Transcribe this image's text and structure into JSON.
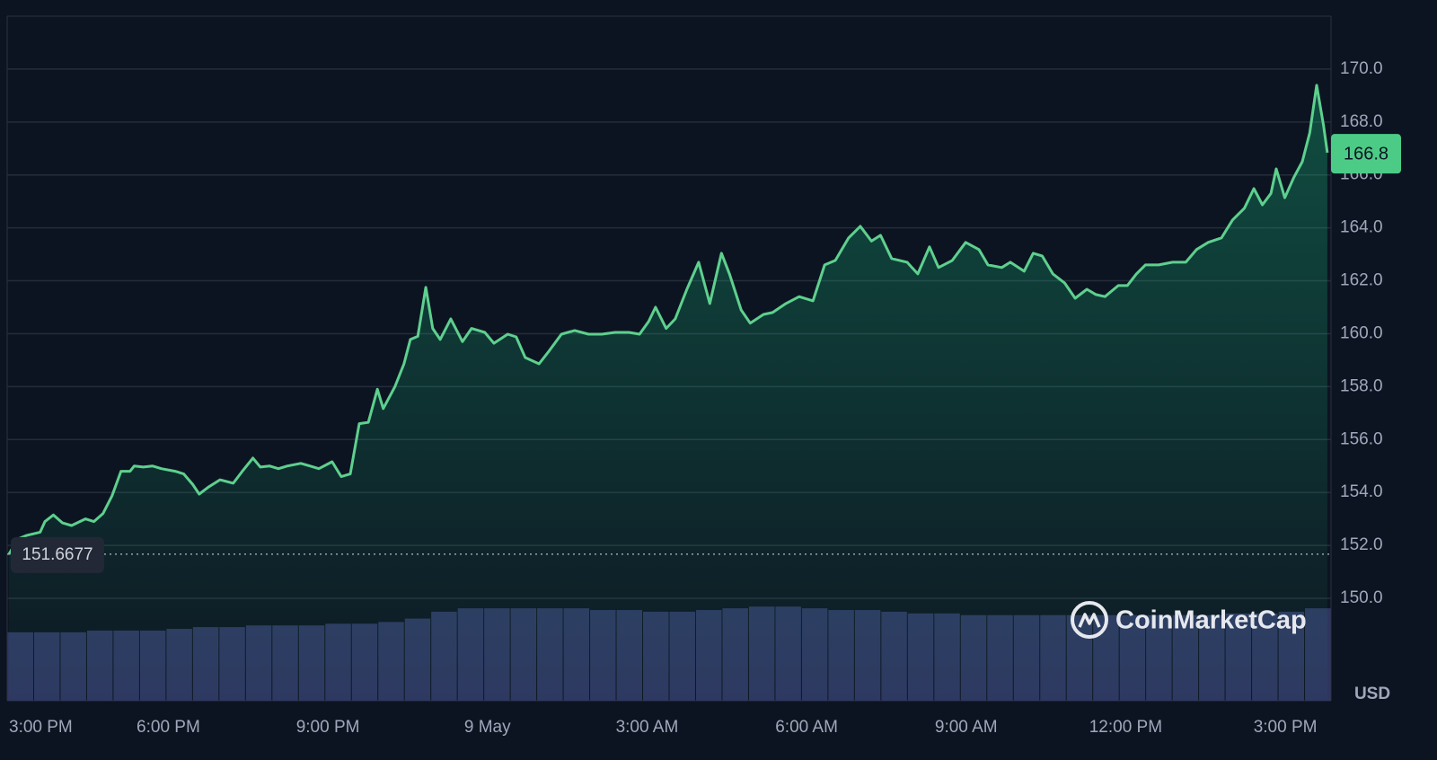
{
  "chart_data": {
    "type": "line",
    "color": "#5ed08e",
    "x": [
      15.0,
      15.17,
      15.34,
      15.59,
      15.68,
      15.84,
      16.01,
      16.18,
      16.44,
      16.6,
      16.77,
      16.94,
      17.11,
      17.28,
      17.36,
      17.53,
      17.7,
      17.87,
      18.13,
      18.29,
      18.46,
      18.58,
      18.75,
      18.97,
      19.22,
      19.39,
      19.59,
      19.73,
      19.9,
      20.07,
      20.24,
      20.49,
      20.66,
      20.83,
      21.08,
      21.25,
      21.42,
      21.59,
      21.76,
      21.93,
      22.04,
      22.26,
      22.43,
      22.55,
      22.69,
      22.84,
      22.97,
      23.11,
      23.31,
      23.53,
      23.7,
      23.95,
      24.12,
      24.38,
      24.54,
      24.71,
      24.97,
      25.14,
      25.39,
      25.64,
      25.9,
      26.15,
      26.4,
      26.66,
      26.86,
      27.03,
      27.16,
      27.36,
      27.53,
      27.75,
      27.97,
      28.18,
      28.4,
      28.55,
      28.77,
      28.94,
      29.19,
      29.36,
      29.61,
      29.86,
      30.12,
      30.34,
      30.54,
      30.79,
      31.01,
      31.22,
      31.39,
      31.6,
      31.89,
      32.09,
      32.31,
      32.48,
      32.74,
      32.99,
      33.24,
      33.41,
      33.67,
      33.83,
      34.09,
      34.26,
      34.43,
      34.63,
      34.85,
      35.05,
      35.27,
      35.44,
      35.61,
      35.86,
      36.03,
      36.2,
      36.37,
      36.62,
      36.88,
      37.13,
      37.33,
      37.55,
      37.8,
      38.01,
      38.23,
      38.41,
      38.57,
      38.73,
      38.83,
      38.99,
      39.16,
      39.32,
      39.46,
      39.59,
      39.72,
      39.79
    ],
    "values": [
      151.66,
      152.24,
      152.38,
      152.5,
      152.9,
      153.15,
      152.85,
      152.75,
      153.0,
      152.9,
      153.2,
      153.87,
      154.8,
      154.8,
      155.0,
      154.96,
      155.0,
      154.9,
      154.8,
      154.7,
      154.3,
      153.94,
      154.2,
      154.48,
      154.35,
      154.8,
      155.3,
      154.96,
      155.0,
      154.9,
      155.0,
      155.1,
      155.0,
      154.9,
      155.16,
      154.6,
      154.7,
      156.6,
      156.65,
      157.9,
      157.17,
      158.0,
      158.86,
      159.78,
      159.9,
      161.75,
      160.2,
      159.78,
      160.56,
      159.7,
      160.2,
      160.05,
      159.64,
      159.98,
      159.88,
      159.1,
      158.86,
      159.3,
      159.98,
      160.12,
      159.98,
      159.98,
      160.05,
      160.05,
      159.98,
      160.46,
      161.0,
      160.2,
      160.56,
      161.68,
      162.7,
      161.14,
      163.04,
      162.26,
      160.9,
      160.4,
      160.73,
      160.8,
      161.14,
      161.4,
      161.24,
      162.6,
      162.77,
      163.62,
      164.06,
      163.5,
      163.72,
      162.84,
      162.7,
      162.26,
      163.28,
      162.5,
      162.77,
      163.45,
      163.18,
      162.6,
      162.5,
      162.7,
      162.36,
      163.04,
      162.94,
      162.26,
      161.92,
      161.34,
      161.68,
      161.48,
      161.4,
      161.82,
      161.82,
      162.26,
      162.6,
      162.6,
      162.7,
      162.7,
      163.18,
      163.45,
      163.62,
      164.3,
      164.74,
      165.48,
      164.87,
      165.3,
      166.23,
      165.14,
      165.9,
      166.5,
      167.59,
      169.39,
      167.86,
      166.84
    ],
    "xlim": [
      14.97,
      39.86
    ],
    "xticks": [
      {
        "value": 15,
        "label": "3:00 PM"
      },
      {
        "value": 18,
        "label": "6:00 PM"
      },
      {
        "value": 21,
        "label": "9:00 PM"
      },
      {
        "value": 24,
        "label": "9 May"
      },
      {
        "value": 27,
        "label": "3:00 AM"
      },
      {
        "value": 30,
        "label": "6:00 AM"
      },
      {
        "value": 33,
        "label": "9:00 AM"
      },
      {
        "value": 36,
        "label": "12:00 PM"
      },
      {
        "value": 39,
        "label": "3:00 PM"
      }
    ],
    "ylim": [
      146.13,
      172.0
    ],
    "yticks": [
      {
        "value": 150,
        "label": "150.0"
      },
      {
        "value": 152,
        "label": "152.0"
      },
      {
        "value": 154,
        "label": "154.0"
      },
      {
        "value": 156,
        "label": "156.0"
      },
      {
        "value": 158,
        "label": "158.0"
      },
      {
        "value": 160,
        "label": "160.0"
      },
      {
        "value": 162,
        "label": "162.0"
      },
      {
        "value": 164,
        "label": "164.0"
      },
      {
        "value": 166,
        "label": "166.0"
      },
      {
        "value": 168,
        "label": "168.0"
      },
      {
        "value": 170,
        "label": "170.0"
      }
    ],
    "grid": true,
    "current_price": 166.8,
    "reference_price": 151.6677,
    "unit": "USD",
    "watermark": "CoinMarketCap",
    "volume": {
      "axis": "y2",
      "color": "#2e3660",
      "values": [
        40,
        40,
        40,
        41,
        41,
        41,
        42,
        43,
        43,
        44,
        44,
        44,
        45,
        45,
        46,
        48,
        52,
        54,
        54,
        54,
        54,
        54,
        53,
        53,
        52,
        52,
        53,
        54,
        55,
        55,
        54,
        53,
        53,
        52,
        51,
        51,
        50,
        50,
        50,
        50,
        50,
        50,
        50,
        50,
        50,
        50,
        51,
        51,
        52,
        54
      ]
    },
    "y2lim": [
      0,
      400
    ]
  }
}
